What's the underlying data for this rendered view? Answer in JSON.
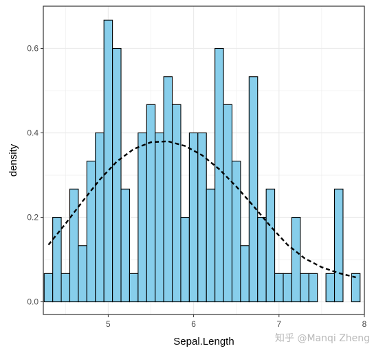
{
  "chart_data": {
    "type": "bar",
    "title": "",
    "xlabel": "Sepal.Length",
    "ylabel": "density",
    "x_ticks": [
      5,
      6,
      7,
      8
    ],
    "y_ticks": [
      "0.0",
      "0.2",
      "0.4",
      "0.6"
    ],
    "xlim": [
      4.24,
      8.0
    ],
    "ylim": [
      -0.03,
      0.7
    ],
    "grid": true,
    "bin_width": 0.1,
    "bins": [
      {
        "x": 4.3,
        "density": 0.067
      },
      {
        "x": 4.4,
        "density": 0.2
      },
      {
        "x": 4.5,
        "density": 0.067
      },
      {
        "x": 4.6,
        "density": 0.267
      },
      {
        "x": 4.7,
        "density": 0.133
      },
      {
        "x": 4.8,
        "density": 0.333
      },
      {
        "x": 4.9,
        "density": 0.4
      },
      {
        "x": 5.0,
        "density": 0.667
      },
      {
        "x": 5.1,
        "density": 0.6
      },
      {
        "x": 5.2,
        "density": 0.267
      },
      {
        "x": 5.3,
        "density": 0.067
      },
      {
        "x": 5.4,
        "density": 0.4
      },
      {
        "x": 5.5,
        "density": 0.467
      },
      {
        "x": 5.6,
        "density": 0.4
      },
      {
        "x": 5.7,
        "density": 0.533
      },
      {
        "x": 5.8,
        "density": 0.467
      },
      {
        "x": 5.9,
        "density": 0.2
      },
      {
        "x": 6.0,
        "density": 0.4
      },
      {
        "x": 6.1,
        "density": 0.4
      },
      {
        "x": 6.2,
        "density": 0.267
      },
      {
        "x": 6.3,
        "density": 0.6
      },
      {
        "x": 6.4,
        "density": 0.467
      },
      {
        "x": 6.5,
        "density": 0.333
      },
      {
        "x": 6.6,
        "density": 0.133
      },
      {
        "x": 6.7,
        "density": 0.533
      },
      {
        "x": 6.8,
        "density": 0.2
      },
      {
        "x": 6.9,
        "density": 0.267
      },
      {
        "x": 7.0,
        "density": 0.067
      },
      {
        "x": 7.1,
        "density": 0.067
      },
      {
        "x": 7.2,
        "density": 0.2
      },
      {
        "x": 7.3,
        "density": 0.067
      },
      {
        "x": 7.4,
        "density": 0.067
      },
      {
        "x": 7.5,
        "density": 0.0
      },
      {
        "x": 7.6,
        "density": 0.067
      },
      {
        "x": 7.7,
        "density": 0.267
      },
      {
        "x": 7.8,
        "density": 0.0
      },
      {
        "x": 7.9,
        "density": 0.067
      }
    ],
    "density_curve": {
      "style": "dashed",
      "x": [
        4.3,
        4.5,
        4.7,
        4.9,
        5.1,
        5.3,
        5.5,
        5.7,
        5.9,
        6.1,
        6.3,
        6.5,
        6.7,
        6.9,
        7.1,
        7.3,
        7.5,
        7.7,
        7.9
      ],
      "y": [
        0.135,
        0.185,
        0.238,
        0.289,
        0.332,
        0.362,
        0.378,
        0.38,
        0.369,
        0.347,
        0.314,
        0.273,
        0.227,
        0.179,
        0.135,
        0.103,
        0.082,
        0.068,
        0.058
      ]
    },
    "colors": {
      "bar_fill": "#87ceeb",
      "bar_stroke": "#000000",
      "curve": "#000000",
      "grid": "#ebebeb",
      "panel_border": "#333333"
    }
  },
  "watermark": "知乎 @Manqi Zheng"
}
